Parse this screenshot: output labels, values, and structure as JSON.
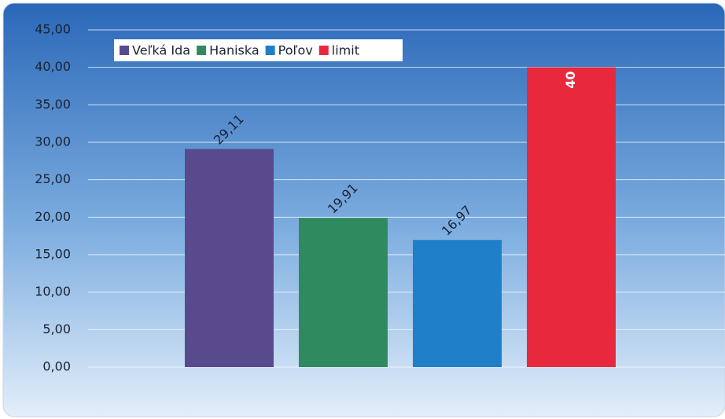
{
  "chart_data": {
    "type": "bar",
    "series": [
      {
        "name": "Veľká Ida",
        "color": "#594a8e",
        "values": [
          29.11
        ],
        "value_labels": [
          "29,11"
        ]
      },
      {
        "name": "Haniska",
        "color": "#2f8a60",
        "values": [
          19.91
        ],
        "value_labels": [
          "19,91"
        ]
      },
      {
        "name": "Poľov",
        "color": "#1f7fc9",
        "values": [
          16.97
        ],
        "value_labels": [
          "16,97"
        ]
      },
      {
        "name": "limit",
        "color": "#e8293d",
        "values": [
          40
        ]
      }
    ],
    "ylim": [
      0,
      45
    ],
    "yticks": [
      {
        "value": 0,
        "label": "0,00"
      },
      {
        "value": 5,
        "label": "5,00"
      },
      {
        "value": 10,
        "label": "10,00"
      },
      {
        "value": 15,
        "label": "15,00"
      },
      {
        "value": 20,
        "label": "20,00"
      },
      {
        "value": 25,
        "label": "25,00"
      },
      {
        "value": 30,
        "label": "30,00"
      },
      {
        "value": 35,
        "label": "35,00"
      },
      {
        "value": 40,
        "label": "40,00"
      },
      {
        "value": 45,
        "label": "45,00"
      }
    ],
    "grid": true,
    "legend": "top-left"
  }
}
